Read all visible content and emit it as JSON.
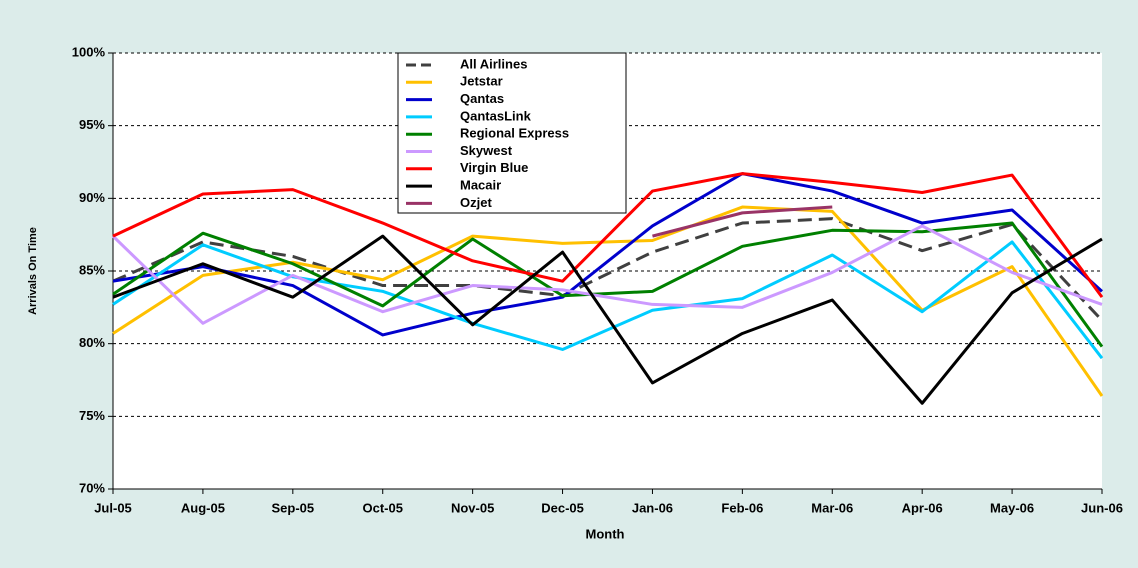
{
  "chart_data": {
    "type": "line",
    "xlabel": "Month",
    "ylabel": "Arrivals On Time",
    "categories": [
      "Jul-05",
      "Aug-05",
      "Sep-05",
      "Oct-05",
      "Nov-05",
      "Dec-05",
      "Jan-06",
      "Feb-06",
      "Mar-06",
      "Apr-06",
      "May-06",
      "Jun-06"
    ],
    "ylim": [
      70,
      100
    ],
    "yticks": [
      {
        "value": 70,
        "label": "70%"
      },
      {
        "value": 75,
        "label": "75%"
      },
      {
        "value": 80,
        "label": "80%"
      },
      {
        "value": 85,
        "label": "85%"
      },
      {
        "value": 90,
        "label": "90%"
      },
      {
        "value": 95,
        "label": "95%"
      },
      {
        "value": 100,
        "label": "100%"
      }
    ],
    "grid": true,
    "series": [
      {
        "name": "All Airlines",
        "color": "#404040",
        "dashed": true,
        "values": [
          84.3,
          87.0,
          86.0,
          84.0,
          84.0,
          83.3,
          86.3,
          88.3,
          88.6,
          86.4,
          88.2,
          81.6
        ]
      },
      {
        "name": "Jetstar",
        "color": "#ffc000",
        "values": [
          80.7,
          84.7,
          85.6,
          84.4,
          87.4,
          86.9,
          87.1,
          89.4,
          89.1,
          82.3,
          85.3,
          76.4
        ]
      },
      {
        "name": "Qantas",
        "color": "#0000cc",
        "values": [
          84.3,
          85.3,
          84.0,
          80.6,
          82.1,
          83.2,
          88.1,
          91.7,
          90.5,
          88.3,
          89.2,
          83.6
        ]
      },
      {
        "name": "QantasLink",
        "color": "#00ccff",
        "values": [
          82.7,
          86.8,
          84.6,
          83.6,
          81.4,
          79.6,
          82.3,
          83.1,
          86.1,
          82.2,
          87.0,
          79.0
        ]
      },
      {
        "name": "Regional Express",
        "color": "#008000",
        "values": [
          83.4,
          87.6,
          85.5,
          82.6,
          87.2,
          83.3,
          83.6,
          86.7,
          87.8,
          87.7,
          88.3,
          79.8
        ]
      },
      {
        "name": "Skywest",
        "color": "#cc99ff",
        "values": [
          87.4,
          81.4,
          84.7,
          82.2,
          84.0,
          83.7,
          82.7,
          82.5,
          84.9,
          88.1,
          84.9,
          82.7
        ]
      },
      {
        "name": "Virgin Blue",
        "color": "#ff0000",
        "values": [
          87.4,
          90.3,
          90.6,
          88.3,
          85.7,
          84.3,
          90.5,
          91.7,
          91.1,
          90.4,
          91.6,
          83.2
        ]
      },
      {
        "name": "Macair",
        "color": "#000000",
        "values": [
          83.2,
          85.5,
          83.2,
          87.4,
          81.3,
          86.3,
          77.3,
          80.7,
          83.0,
          75.9,
          83.5,
          87.2
        ]
      },
      {
        "name": "Ozjet",
        "color": "#993366",
        "values": [
          null,
          null,
          null,
          null,
          null,
          null,
          87.4,
          89.0,
          89.4,
          null,
          null,
          null
        ]
      }
    ]
  }
}
